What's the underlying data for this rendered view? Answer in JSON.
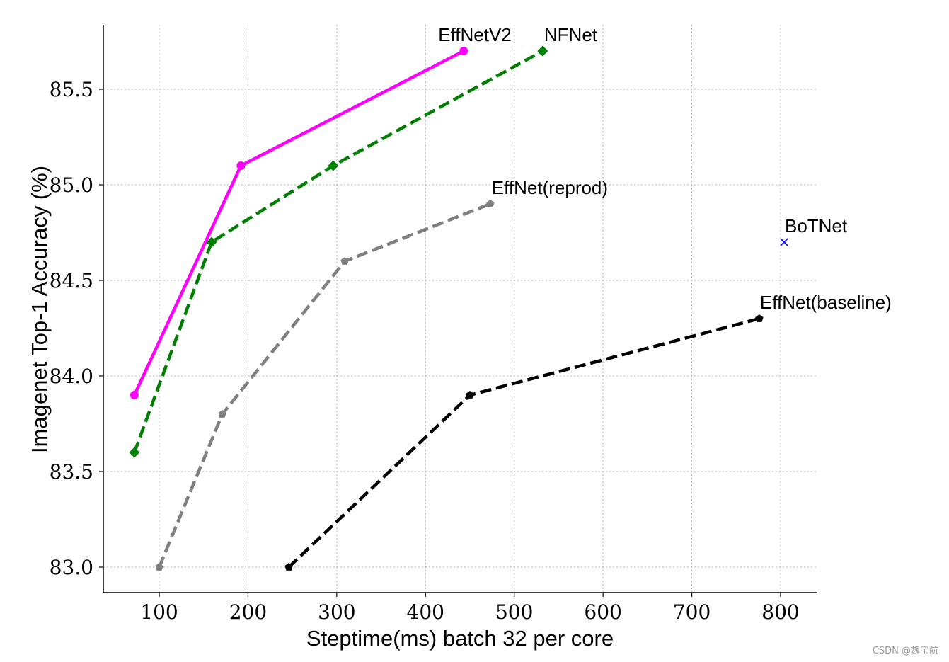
{
  "chart_data": {
    "type": "line",
    "xlabel": "Steptime(ms) batch 32 per core",
    "ylabel": "Imagenet Top-1 Accuracy (%)",
    "xlim": [
      40,
      845
    ],
    "ylim": [
      82.87,
      85.84
    ],
    "xticks": [
      100,
      200,
      300,
      400,
      500,
      600,
      700,
      800
    ],
    "xtick_labels": [
      "100",
      "200",
      "300",
      "400",
      "500",
      "600",
      "700",
      "800"
    ],
    "yticks": [
      83.0,
      83.5,
      84.0,
      84.5,
      85.0,
      85.5
    ],
    "ytick_labels": [
      "83.0",
      "83.5",
      "84.0",
      "84.5",
      "85.0",
      "85.5"
    ],
    "grid": true,
    "series": [
      {
        "name": "EffNetV2",
        "color": "#ff00ff",
        "linestyle": "solid",
        "marker": "circle",
        "x": [
          72,
          192,
          443
        ],
        "y": [
          83.9,
          85.1,
          85.7
        ]
      },
      {
        "name": "NFNet",
        "color": "#008000",
        "linestyle": "dashed",
        "marker": "diamond",
        "x": [
          72,
          159,
          296,
          532
        ],
        "y": [
          83.6,
          84.7,
          85.1,
          85.7
        ]
      },
      {
        "name": "EffNet(reprod)",
        "color": "#808080",
        "linestyle": "dashed",
        "marker": "pentagon",
        "x": [
          100,
          171,
          309,
          473
        ],
        "y": [
          83.0,
          83.8,
          84.6,
          84.9
        ]
      },
      {
        "name": "BoTNet",
        "color": "#0000ff",
        "linestyle": "none",
        "marker": "x",
        "x": [
          804
        ],
        "y": [
          84.7
        ]
      },
      {
        "name": "EffNet(baseline)",
        "color": "#000000",
        "linestyle": "dashed",
        "marker": "pentagon",
        "x": [
          246,
          450,
          776
        ],
        "y": [
          83.0,
          83.9,
          84.3
        ]
      }
    ]
  },
  "watermark": "CSDN @魏宝航"
}
